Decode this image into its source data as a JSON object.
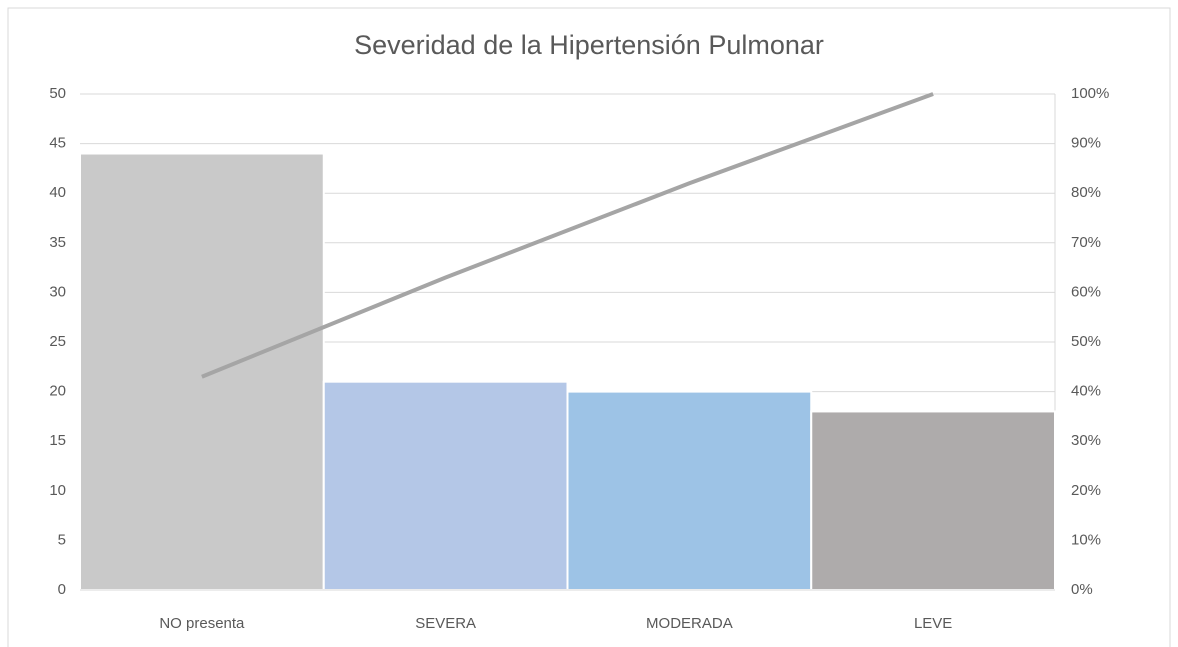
{
  "chart_data": {
    "type": "pareto",
    "title": "Severidad de la Hipertensión Pulmonar",
    "categories": [
      "NO presenta",
      "SEVERA",
      "MODERADA",
      "LEVE"
    ],
    "series": [
      {
        "colors": [
          "#c9c9c9",
          "#b4c7e7",
          "#9dc3e6",
          "#aeabab"
        ],
        "values": [
          44,
          21,
          20,
          18
        ]
      },
      {
        "color": "#a5a5a5",
        "axis": "y2",
        "values": [
          43,
          63,
          82,
          100
        ]
      }
    ],
    "ylim": [
      0,
      50
    ],
    "yticks": [
      0,
      5,
      10,
      15,
      20,
      25,
      30,
      35,
      40,
      45,
      50
    ],
    "y2lim": [
      0,
      100
    ],
    "y2ticks": [
      {
        "value": 0,
        "label": "0%"
      },
      {
        "value": 10,
        "label": "10%"
      },
      {
        "value": 20,
        "label": "20%"
      },
      {
        "value": 30,
        "label": "30%"
      },
      {
        "value": 40,
        "label": "40%"
      },
      {
        "value": 50,
        "label": "50%"
      },
      {
        "value": 60,
        "label": "60%"
      },
      {
        "value": 70,
        "label": "70%"
      },
      {
        "value": 80,
        "label": "80%"
      },
      {
        "value": 90,
        "label": "90%"
      },
      {
        "value": 100,
        "label": "100%"
      }
    ],
    "grid": true
  }
}
